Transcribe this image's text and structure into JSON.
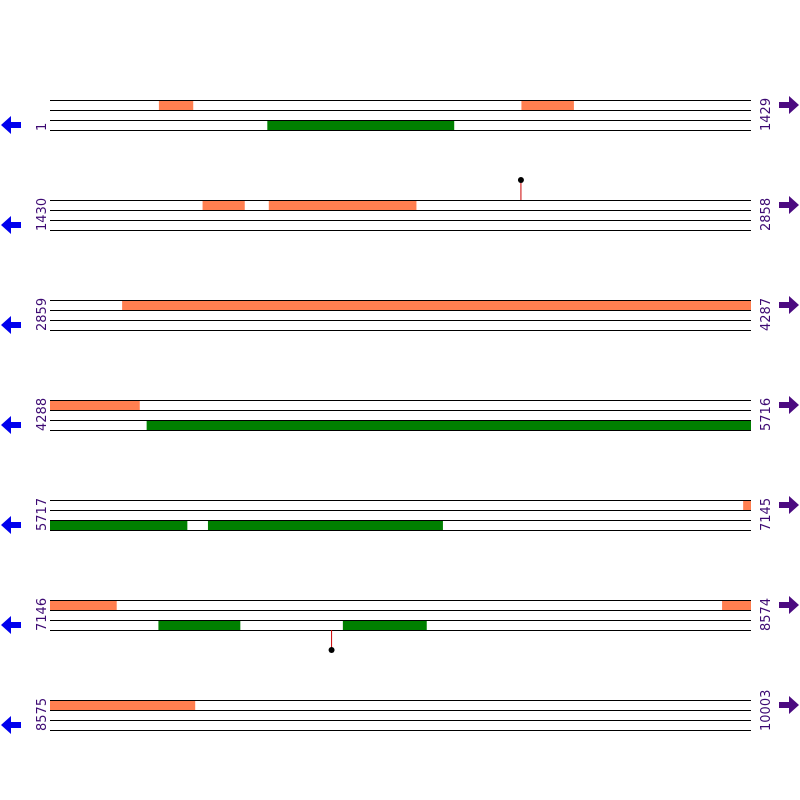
{
  "colors": {
    "forward_feature": "#ff7f50",
    "reverse_feature": "#008000",
    "line": "#000000",
    "marker_stem": "#cc0000",
    "left_arrow": "#0000ee",
    "right_arrow": "#4b0a80",
    "label": "#3d0a73"
  },
  "icons": {
    "left": "arrow-left-icon",
    "right": "arrow-right-icon"
  },
  "chart_data": {
    "type": "sequence-map",
    "total_length": 10003,
    "rows": [
      {
        "start": 1,
        "end": 1429,
        "start_label": "1",
        "end_label": "1429",
        "features": [
          {
            "strand": "forward",
            "lane": 0,
            "start": 223,
            "end": 292
          },
          {
            "strand": "forward",
            "lane": 0,
            "start": 962,
            "end": 1068
          },
          {
            "strand": "reverse",
            "lane": 2,
            "start": 444,
            "end": 824
          }
        ],
        "markers": []
      },
      {
        "start": 1430,
        "end": 2858,
        "start_label": "1430",
        "end_label": "2858",
        "features": [
          {
            "strand": "forward",
            "lane": 0,
            "start": 1741,
            "end": 1826
          },
          {
            "strand": "forward",
            "lane": 0,
            "start": 1876,
            "end": 2176
          }
        ],
        "markers": [
          {
            "pos": 2390,
            "side": "top"
          }
        ]
      },
      {
        "start": 2859,
        "end": 4287,
        "start_label": "2859",
        "end_label": "4287",
        "features": [
          {
            "strand": "forward",
            "lane": 0,
            "start": 3006,
            "end": 4287
          }
        ],
        "markers": []
      },
      {
        "start": 4288,
        "end": 5716,
        "start_label": "4288",
        "end_label": "5716",
        "features": [
          {
            "strand": "forward",
            "lane": 0,
            "start": 4288,
            "end": 4470
          },
          {
            "strand": "reverse",
            "lane": 2,
            "start": 4485,
            "end": 5716
          }
        ],
        "markers": []
      },
      {
        "start": 5717,
        "end": 7145,
        "start_label": "5717",
        "end_label": "7145",
        "features": [
          {
            "strand": "forward",
            "lane": 0,
            "start": 7130,
            "end": 7145
          },
          {
            "strand": "reverse",
            "lane": 2,
            "start": 5717,
            "end": 5996
          },
          {
            "strand": "reverse",
            "lane": 2,
            "start": 6039,
            "end": 6517
          }
        ],
        "markers": []
      },
      {
        "start": 7146,
        "end": 8574,
        "start_label": "7146",
        "end_label": "8574",
        "features": [
          {
            "strand": "forward",
            "lane": 0,
            "start": 7146,
            "end": 7281
          },
          {
            "strand": "forward",
            "lane": 0,
            "start": 8516,
            "end": 8574
          },
          {
            "strand": "reverse",
            "lane": 2,
            "start": 7367,
            "end": 7533
          },
          {
            "strand": "reverse",
            "lane": 2,
            "start": 7743,
            "end": 7913
          }
        ],
        "markers": [
          {
            "pos": 7720,
            "side": "bottom"
          }
        ]
      },
      {
        "start": 8575,
        "end": 10003,
        "start_label": "8575",
        "end_label": "10003",
        "features": [
          {
            "strand": "forward",
            "lane": 0,
            "start": 8575,
            "end": 8870
          }
        ],
        "markers": []
      }
    ]
  }
}
